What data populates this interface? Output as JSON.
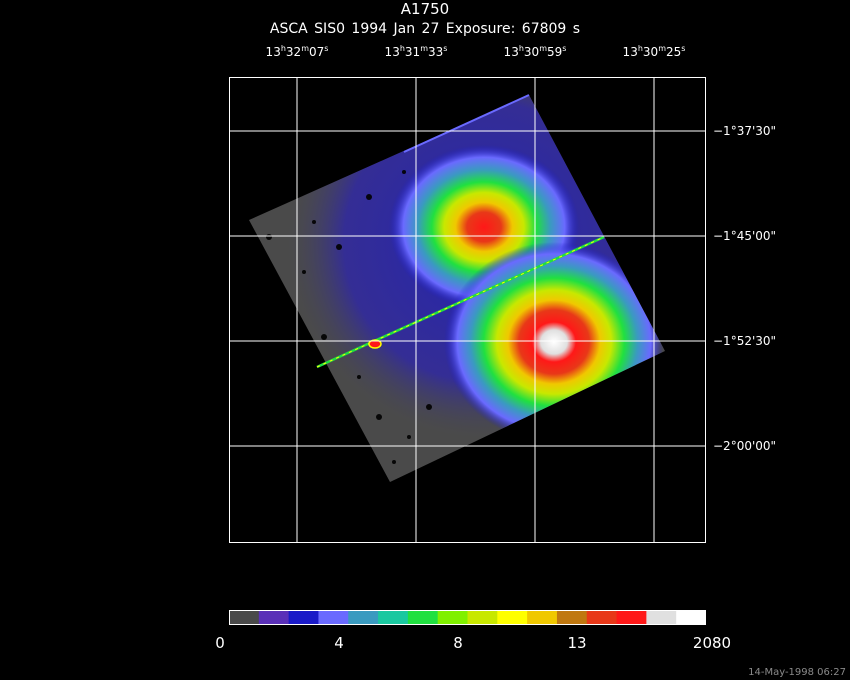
{
  "header": {
    "target": "A1750",
    "observation_line": "ASCA SIS0   1994 Jan 27   Exposure: 67809 s"
  },
  "ra_ticks": [
    {
      "h": "13",
      "m": "32",
      "s": "07"
    },
    {
      "h": "13",
      "m": "31",
      "s": "33"
    },
    {
      "h": "13",
      "m": "30",
      "s": "59"
    },
    {
      "h": "13",
      "m": "30",
      "s": "25"
    }
  ],
  "dec_ticks": [
    "−1°37'30\"",
    "−1°45'00\"",
    "−1°52'30\"",
    "−2°00'00\""
  ],
  "colorbar": {
    "colors": [
      "#4a4a4a",
      "#5a30b8",
      "#1a1ac8",
      "#6a6aff",
      "#3a9ac0",
      "#1ac8a0",
      "#20e040",
      "#80f000",
      "#c8e800",
      "#ffff00",
      "#f0c800",
      "#c07810",
      "#e83818",
      "#ff1818",
      "#e0e0e0",
      "#ffffff"
    ],
    "labels": [
      "0",
      "4",
      "8",
      "13",
      "2080"
    ]
  },
  "timestamp": "14-May-1998 06:27"
}
